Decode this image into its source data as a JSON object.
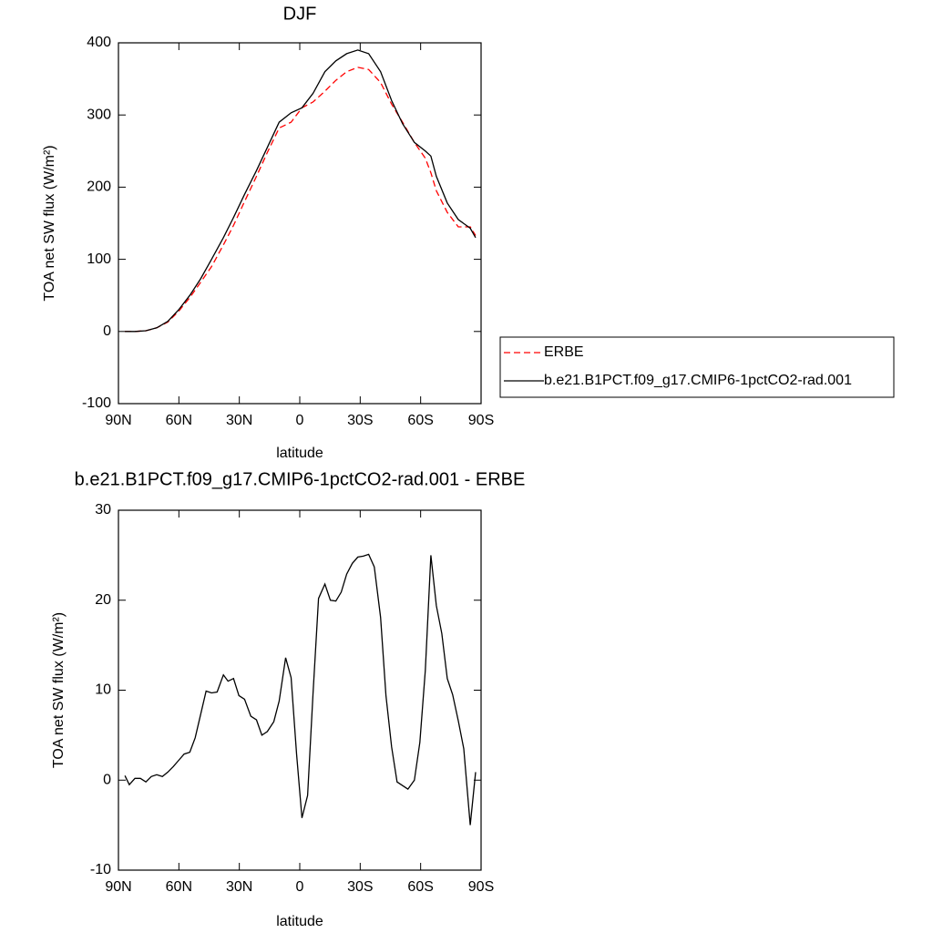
{
  "chart_data": [
    {
      "type": "line",
      "title": "DJF",
      "x_label": "latitude",
      "y_label": "TOA net SW flux (W/m²)",
      "x": [
        86.8,
        81.8,
        76.4,
        71.0,
        65.5,
        60.1,
        54.6,
        49.2,
        43.8,
        37.9,
        32.9,
        27.4,
        21.5,
        16.1,
        10.2,
        4.3,
        -1.1,
        -6.6,
        -12.5,
        -17.9,
        -23.3,
        -28.8,
        -34.2,
        -40.1,
        -45.6,
        -51.0,
        -56.9,
        -62.3,
        -65.1,
        -67.8,
        -73.2,
        -78.7,
        -84.6,
        -87.3
      ],
      "series": [
        {
          "name": "ERBE",
          "color": "#ff0000",
          "linestyle": "dashed",
          "values": [
            0,
            0,
            1,
            5,
            13,
            28,
            47,
            68,
            90,
            120,
            147,
            180,
            215,
            248,
            282,
            290,
            310,
            318,
            333,
            348,
            360,
            366,
            363,
            345,
            315,
            290,
            262,
            240,
            220,
            195,
            165,
            145,
            145,
            133
          ]
        },
        {
          "name": "b.e21.B1PCT.f09_g17.CMIP6-1pctCO2-rad.001",
          "color": "#000000",
          "linestyle": "solid",
          "values": [
            0,
            0,
            1,
            5,
            14,
            30,
            50,
            73,
            100,
            130,
            158,
            190,
            223,
            255,
            290,
            303,
            310,
            330,
            360,
            375,
            385,
            390,
            385,
            360,
            320,
            288,
            262,
            250,
            243,
            215,
            178,
            155,
            143,
            130
          ]
        }
      ],
      "xlim": [
        90,
        -90
      ],
      "xticks": [
        {
          "value": 90,
          "label": "90N"
        },
        {
          "value": 60,
          "label": "60N"
        },
        {
          "value": 30,
          "label": "30N"
        },
        0,
        {
          "value": -30,
          "label": "30S"
        },
        {
          "value": -60,
          "label": "60S"
        },
        {
          "value": -90,
          "label": "90S"
        }
      ],
      "ylim": [
        -100,
        400
      ],
      "yticks": [
        -100,
        0,
        100,
        200,
        300,
        400
      ]
    },
    {
      "type": "line",
      "title": "b.e21.B1PCT.f09_g17.CMIP6-1pctCO2-rad.001 - ERBE",
      "x_label": "latitude",
      "y_label": "TOA net SW flux (W/m²)",
      "x": [
        86.8,
        84.6,
        81.8,
        79.1,
        76.4,
        73.7,
        71.0,
        68.2,
        65.5,
        62.8,
        60.1,
        57.4,
        54.6,
        51.9,
        49.2,
        46.5,
        43.8,
        41.0,
        37.9,
        35.6,
        32.9,
        30.2,
        27.4,
        24.3,
        21.5,
        18.8,
        16.1,
        12.9,
        10.2,
        7.0,
        4.3,
        1.6,
        -1.1,
        -3.9,
        -6.6,
        -9.3,
        -12.5,
        -15.2,
        -17.9,
        -20.6,
        -23.3,
        -26.1,
        -28.8,
        -31.5,
        -34.2,
        -37.0,
        -40.1,
        -42.8,
        -45.6,
        -48.3,
        -51.0,
        -53.7,
        -56.9,
        -59.6,
        -62.3,
        -65.1,
        -67.8,
        -70.5,
        -73.2,
        -75.9,
        -78.7,
        -81.4,
        -84.6,
        -87.3
      ],
      "values": [
        0.5,
        -0.5,
        0.2,
        0.2,
        -0.2,
        0.4,
        0.6,
        0.4,
        0.9,
        1.5,
        2.2,
        2.9,
        3.1,
        4.7,
        7.3,
        9.9,
        9.7,
        9.8,
        11.7,
        11.0,
        11.3,
        9.4,
        9.0,
        7.1,
        6.7,
        5.0,
        5.4,
        6.5,
        8.8,
        13.6,
        11.4,
        2.9,
        -4.2,
        -1.7,
        9.7,
        20.2,
        21.8,
        20.0,
        19.9,
        20.9,
        22.9,
        24.1,
        24.8,
        24.9,
        25.1,
        23.7,
        18.1,
        9.4,
        3.7,
        -0.2,
        -0.6,
        -1.0,
        0.0,
        4.2,
        12.2,
        25.0,
        19.4,
        16.3,
        11.3,
        9.5,
        6.6,
        3.5,
        -5.0,
        0.9
      ],
      "color": "#000000",
      "xlim": [
        90,
        -90
      ],
      "xticks": [
        {
          "value": 90,
          "label": "90N"
        },
        {
          "value": 60,
          "label": "60N"
        },
        {
          "value": 30,
          "label": "30N"
        },
        0,
        {
          "value": -30,
          "label": "30S"
        },
        {
          "value": -60,
          "label": "60S"
        },
        {
          "value": -90,
          "label": "90S"
        }
      ],
      "ylim": [
        -10,
        30
      ],
      "yticks": [
        -10,
        0,
        10,
        20,
        30
      ]
    }
  ]
}
